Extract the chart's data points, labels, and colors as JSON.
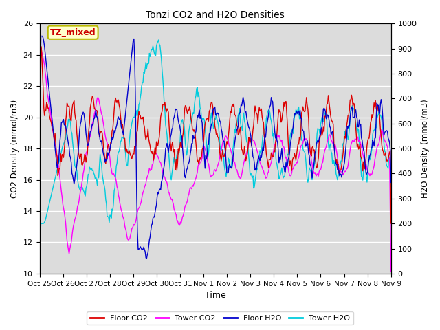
{
  "title": "Tonzi CO2 and H2O Densities",
  "xlabel": "Time",
  "ylabel_left": "CO2 Density (mmol/m3)",
  "ylabel_right": "H2O Density (mmol/m3)",
  "ylim_left": [
    10,
    26
  ],
  "ylim_right": [
    0,
    1000
  ],
  "yticks_left": [
    10,
    12,
    14,
    16,
    18,
    20,
    22,
    24,
    26
  ],
  "yticks_right": [
    0,
    100,
    200,
    300,
    400,
    500,
    600,
    700,
    800,
    900,
    1000
  ],
  "xtick_labels": [
    "Oct 25",
    "Oct 26",
    "Oct 27",
    "Oct 28",
    "Oct 29",
    "Oct 30",
    "Oct 31",
    "Nov 1",
    "Nov 2",
    "Nov 3",
    "Nov 4",
    "Nov 5",
    "Nov 6",
    "Nov 7",
    "Nov 8",
    "Nov 9"
  ],
  "colors": {
    "floor_co2": "#dd0000",
    "tower_co2": "#ff00ff",
    "floor_h2o": "#0000cc",
    "tower_h2o": "#00ccdd"
  },
  "annotation_text": "TZ_mixed",
  "annotation_color": "#cc0000",
  "annotation_bg": "#ffffcc",
  "annotation_border": "#bbbb00",
  "plot_bg": "#dcdcdc",
  "fig_bg": "#ffffff",
  "line_width": 1.0,
  "n_points": 500,
  "seed": 7
}
